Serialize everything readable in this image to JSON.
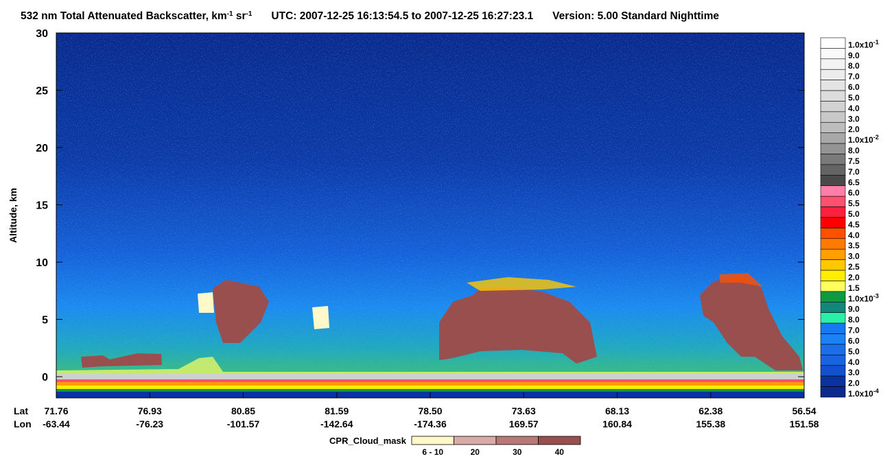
{
  "chart_data": {
    "type": "curtain",
    "title": {
      "main": "532 nm Total Attenuated Backscatter, km",
      "sup1": "-1",
      "unit2": " sr",
      "sup2": "-1",
      "utc": "UTC:  2007-12-25 16:13:54.5  to  2007-12-25 16:27:23.1",
      "version": "Version: 5.00  Standard  Nighttime"
    },
    "y_label": "Altitude, km",
    "ylim": [
      -1.85,
      30
    ],
    "yticks": [
      0,
      5,
      10,
      15,
      20,
      25,
      30
    ],
    "x_axis": {
      "lat_label": "Lat",
      "lon_label": "Lon",
      "lat": [
        "71.76",
        "76.93",
        "80.85",
        "81.59",
        "78.50",
        "73.63",
        "68.13",
        "62.38",
        "56.54"
      ],
      "lon": [
        "-63.44",
        "-76.23",
        "-101.57",
        "-142.64",
        "-174.36",
        "169.57",
        "160.84",
        "155.38",
        "151.58"
      ]
    },
    "colorbar": [
      {
        "label": "1.0x10",
        "sup": "-1",
        "color": "#ffffff"
      },
      {
        "label": "9.0",
        "color": "#fafafa"
      },
      {
        "label": "8.0",
        "color": "#f3f3f3"
      },
      {
        "label": "7.0",
        "color": "#ececec"
      },
      {
        "label": "6.0",
        "color": "#e4e4e4"
      },
      {
        "label": "5.0",
        "color": "#dcdcdc"
      },
      {
        "label": "4.0",
        "color": "#d2d2d2"
      },
      {
        "label": "3.0",
        "color": "#c8c8c8"
      },
      {
        "label": "2.0",
        "color": "#bdbdbd"
      },
      {
        "label": "1.0x10",
        "sup": "-2",
        "color": "#a8a8a8"
      },
      {
        "label": "8.0",
        "color": "#949494"
      },
      {
        "label": "7.5",
        "color": "#7a7a7a"
      },
      {
        "label": "7.0",
        "color": "#646464"
      },
      {
        "label": "6.5",
        "color": "#4a4a4a"
      },
      {
        "label": "6.0",
        "color": "#ff7fa8"
      },
      {
        "label": "5.5",
        "color": "#ff5070"
      },
      {
        "label": "5.0",
        "color": "#ff2040"
      },
      {
        "label": "4.5",
        "color": "#ff0000"
      },
      {
        "label": "4.0",
        "color": "#ff5000"
      },
      {
        "label": "3.5",
        "color": "#ff7a00"
      },
      {
        "label": "3.0",
        "color": "#ffa000"
      },
      {
        "label": "2.5",
        "color": "#ffc800"
      },
      {
        "label": "2.0",
        "color": "#ffee00"
      },
      {
        "label": "1.5",
        "color": "#ffff60"
      },
      {
        "label": "1.0x10",
        "sup": "-3",
        "color": "#109a40"
      },
      {
        "label": "9.0",
        "color": "#10887a"
      },
      {
        "label": "8.0",
        "color": "#28f0a8"
      },
      {
        "label": "7.0",
        "color": "#1878f0"
      },
      {
        "label": "6.0",
        "color": "#1a82f5"
      },
      {
        "label": "5.0",
        "color": "#1a6ee8"
      },
      {
        "label": "4.0",
        "color": "#1a62e0"
      },
      {
        "label": "3.0",
        "color": "#1250d0"
      },
      {
        "label": "2.0",
        "color": "#0a32a0"
      },
      {
        "label": "1.0x10",
        "sup": "-4",
        "color": "#0a2a8c"
      }
    ],
    "cloud_mask": {
      "title": "CPR_Cloud_mask",
      "items": [
        {
          "label": "6 - 10",
          "color": "#fff8c8"
        },
        {
          "label": "20",
          "color": "#d8aaa8"
        },
        {
          "label": "30",
          "color": "#b87878"
        },
        {
          "label": "40",
          "color": "#9a4f4f"
        }
      ]
    }
  }
}
